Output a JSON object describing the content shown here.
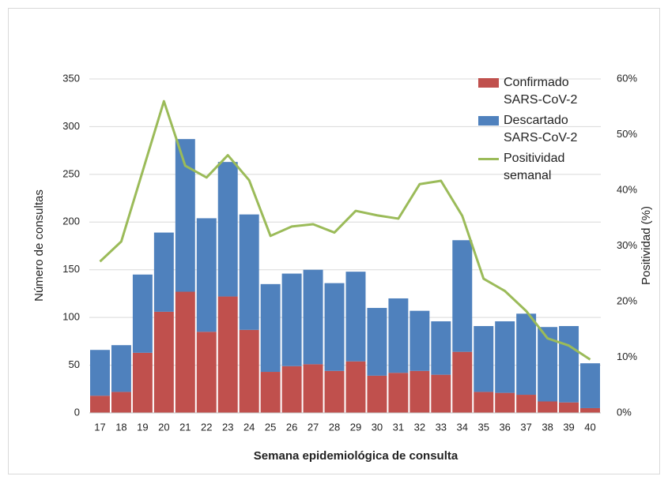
{
  "chart_data": {
    "type": "bar",
    "stacked": true,
    "xlabel": "Semana epidemiológica de consulta",
    "ylabel": "Número de consultas",
    "y2label": "Positividad (%)",
    "categories": [
      "17",
      "18",
      "19",
      "20",
      "21",
      "22",
      "23",
      "24",
      "25",
      "26",
      "27",
      "28",
      "29",
      "30",
      "31",
      "32",
      "33",
      "34",
      "35",
      "36",
      "37",
      "38",
      "39",
      "40"
    ],
    "series": [
      {
        "name": "Confirmado SARS-CoV-2",
        "color": "#c0504d",
        "type": "bar",
        "values": [
          18,
          22,
          63,
          106,
          127,
          85,
          122,
          87,
          43,
          49,
          51,
          44,
          54,
          39,
          42,
          44,
          40,
          64,
          22,
          21,
          19,
          12,
          11,
          5
        ]
      },
      {
        "name": "Descartado SARS-CoV-2",
        "color": "#4f81bd",
        "type": "bar",
        "values": [
          48,
          49,
          82,
          83,
          160,
          119,
          141,
          121,
          92,
          97,
          99,
          92,
          94,
          71,
          78,
          63,
          56,
          117,
          69,
          75,
          85,
          78,
          80,
          47
        ]
      },
      {
        "name": "Positividad semanal",
        "color": "#9bbb59",
        "type": "line",
        "axis": "y2",
        "values": [
          27.2,
          30.8,
          43.4,
          56,
          44.4,
          42.3,
          46.3,
          41.8,
          31.8,
          33.5,
          33.9,
          32.4,
          36.3,
          35.5,
          34.9,
          41.1,
          41.7,
          35.4,
          24.1,
          21.9,
          18.3,
          13.4,
          12.1,
          9.6
        ]
      }
    ],
    "ylim": [
      0,
      350
    ],
    "yticks": [
      0,
      50,
      100,
      150,
      200,
      250,
      300,
      350
    ],
    "y2lim": [
      0,
      60
    ],
    "y2ticks": [
      {
        "value": 0,
        "label": "0%"
      },
      {
        "value": 10,
        "label": "10%"
      },
      {
        "value": 20,
        "label": "20%"
      },
      {
        "value": 30,
        "label": "30%"
      },
      {
        "value": 40,
        "label": "40%"
      },
      {
        "value": 50,
        "label": "50%"
      },
      {
        "value": 60,
        "label": "60%"
      }
    ],
    "grid": true,
    "legend": "top-right"
  }
}
